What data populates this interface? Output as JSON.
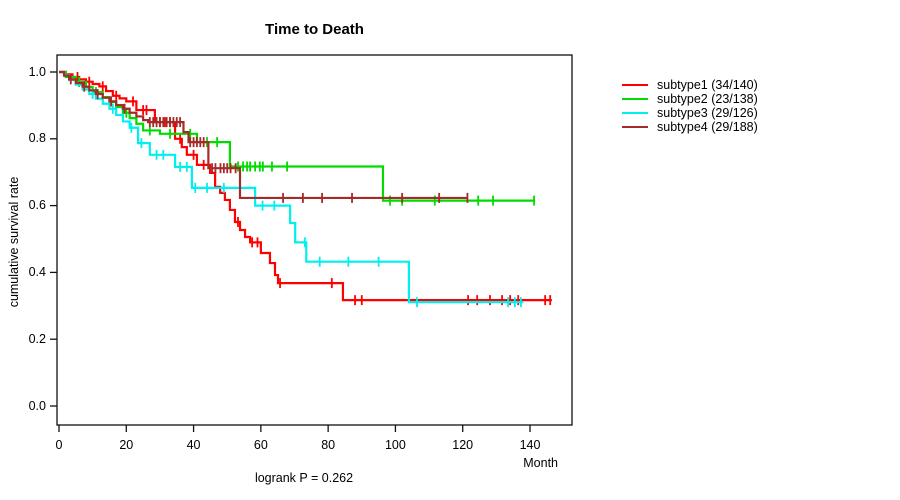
{
  "chart_data": {
    "type": "line",
    "subtype": "kaplan-meier-step",
    "title": "Time to Death",
    "xlabel": "Month",
    "ylabel": "cumulative survival rate",
    "annotation": "logrank P = 0.262",
    "grid": false,
    "legend_position": "right-outside",
    "x_ticks": [
      0,
      20,
      40,
      60,
      80,
      100,
      120,
      140
    ],
    "x_tick_labels": [
      "0",
      "20",
      "40",
      "60",
      "80",
      "100",
      "120",
      "140"
    ],
    "y_ticks": [
      1.0,
      0.8,
      0.6,
      0.4,
      0.2,
      0.0
    ],
    "y_tick_labels": [
      "1.0",
      "0.8",
      "0.6",
      "0.4",
      "0.2",
      "0.0"
    ],
    "xlim": [
      0,
      152
    ],
    "ylim": [
      0,
      1.04
    ],
    "axis_color": "#111111",
    "series": [
      {
        "name": "subtype1 (34/140)",
        "color": "#FF0000",
        "steps": [
          [
            0,
            1
          ],
          [
            2,
            0.993
          ],
          [
            4,
            0.985
          ],
          [
            6,
            0.978
          ],
          [
            8,
            0.971
          ],
          [
            10,
            0.964
          ],
          [
            12,
            0.957
          ],
          [
            14,
            0.943
          ],
          [
            16,
            0.929
          ],
          [
            18,
            0.921
          ],
          [
            20,
            0.912
          ],
          [
            23,
            0.886
          ],
          [
            28.5,
            0.85
          ],
          [
            34.5,
            0.8
          ],
          [
            36.5,
            0.775
          ],
          [
            38,
            0.752
          ],
          [
            41,
            0.722
          ],
          [
            44.9,
            0.698
          ],
          [
            46.4,
            0.656
          ],
          [
            47.9,
            0.638
          ],
          [
            49.3,
            0.617
          ],
          [
            50.8,
            0.587
          ],
          [
            52.3,
            0.551
          ],
          [
            53.8,
            0.527
          ],
          [
            55.3,
            0.506
          ],
          [
            56.8,
            0.49
          ],
          [
            60,
            0.458
          ],
          [
            62.7,
            0.428
          ],
          [
            64.2,
            0.392
          ],
          [
            65.1,
            0.368
          ],
          [
            84.4,
            0.317
          ]
        ],
        "end": 146.5,
        "censors": [
          5.5,
          9,
          13,
          17,
          22,
          25,
          26,
          30,
          31.5,
          33,
          36,
          40,
          43,
          53.2,
          57.4,
          59,
          65.7,
          81.1,
          88,
          90,
          121.6,
          124.3,
          128.1,
          131.7,
          134.1,
          136.5,
          144.5,
          146
        ]
      },
      {
        "name": "subtype2 (23/138)",
        "color": "#00DC00",
        "steps": [
          [
            0,
            1
          ],
          [
            2,
            0.985
          ],
          [
            5,
            0.97
          ],
          [
            8,
            0.955
          ],
          [
            10,
            0.94
          ],
          [
            13,
            0.925
          ],
          [
            15,
            0.91
          ],
          [
            17,
            0.895
          ],
          [
            19,
            0.878
          ],
          [
            21,
            0.862
          ],
          [
            23,
            0.845
          ],
          [
            25,
            0.825
          ],
          [
            30,
            0.815
          ],
          [
            41,
            0.79
          ],
          [
            50.8,
            0.717
          ],
          [
            96.3,
            0.615
          ]
        ],
        "end": 141.5,
        "censors": [
          6,
          11,
          20,
          27,
          33,
          39,
          44,
          47,
          53.2,
          54.7,
          55.9,
          56.8,
          58.3,
          59.7,
          60.6,
          63.3,
          67.8,
          98.4,
          102,
          111.7,
          124.6,
          129,
          141.2
        ]
      },
      {
        "name": "subtype3 (29/126)",
        "color": "#00F0F0",
        "steps": [
          [
            0,
            1
          ],
          [
            1.5,
            0.99
          ],
          [
            3,
            0.976
          ],
          [
            5,
            0.962
          ],
          [
            7,
            0.948
          ],
          [
            9,
            0.934
          ],
          [
            11,
            0.92
          ],
          [
            13,
            0.905
          ],
          [
            15,
            0.89
          ],
          [
            17,
            0.871
          ],
          [
            19,
            0.852
          ],
          [
            21,
            0.833
          ],
          [
            23.5,
            0.787
          ],
          [
            27,
            0.752
          ],
          [
            34.5,
            0.716
          ],
          [
            39.5,
            0.653
          ],
          [
            58.3,
            0.6
          ],
          [
            68.7,
            0.548
          ],
          [
            70.2,
            0.49
          ],
          [
            73.5,
            0.432
          ],
          [
            104,
            0.311
          ]
        ],
        "end": 138,
        "censors": [
          10,
          16,
          21.5,
          24.5,
          29,
          31,
          36,
          38,
          40.5,
          44,
          49,
          60.5,
          64,
          73.1,
          77.5,
          86,
          95,
          106.4,
          133.5,
          135.5,
          137.3
        ]
      },
      {
        "name": "subtype4 (29/188)",
        "color": "#A52A2A",
        "steps": [
          [
            0,
            1
          ],
          [
            1.5,
            0.989
          ],
          [
            3,
            0.978
          ],
          [
            5,
            0.967
          ],
          [
            7,
            0.956
          ],
          [
            9,
            0.945
          ],
          [
            11,
            0.934
          ],
          [
            13,
            0.923
          ],
          [
            15,
            0.912
          ],
          [
            17,
            0.901
          ],
          [
            19,
            0.89
          ],
          [
            21,
            0.878
          ],
          [
            23,
            0.867
          ],
          [
            25,
            0.856
          ],
          [
            26.5,
            0.85
          ],
          [
            37,
            0.82
          ],
          [
            38.5,
            0.79
          ],
          [
            44.4,
            0.712
          ],
          [
            53.8,
            0.623
          ]
        ],
        "end": 121.6,
        "censors": [
          3.5,
          7.5,
          11.5,
          15.5,
          19.5,
          27,
          28,
          29,
          30,
          31,
          32,
          33,
          34,
          35,
          36,
          39,
          40,
          41,
          42,
          43,
          45.5,
          46.5,
          48,
          49,
          50,
          51,
          52.5,
          66.6,
          72.5,
          78.2,
          87.1,
          102,
          113,
          121.4
        ]
      }
    ]
  }
}
